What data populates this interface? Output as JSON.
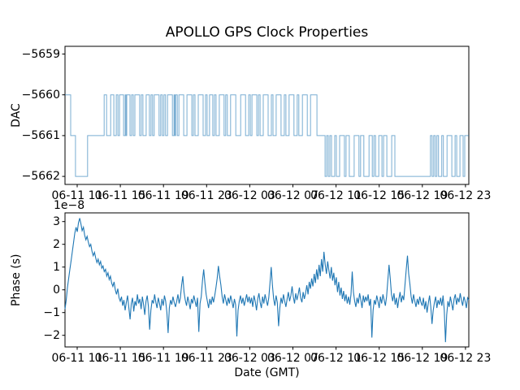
{
  "figure_title": "APOLLO GPS Clock Properties",
  "colors": {
    "line": "#1f77b4",
    "axis": "#000000",
    "background": "#ffffff",
    "text": "#000000"
  },
  "chart_data": [
    {
      "type": "line",
      "name": "dac-subplot",
      "ylabel": "DAC",
      "ytick_values": [
        -5659,
        -5660,
        -5661,
        -5662
      ],
      "ytick_labels": [
        "−5659",
        "−5660",
        "−5661",
        "−5662"
      ],
      "ylim": [
        -5662.25,
        -5658.8
      ],
      "xtick_labels": [
        "06-11 11",
        "06-11 15",
        "06-11 19",
        "06-11 23",
        "06-12 03",
        "06-12 07",
        "06-12 11",
        "06-12 15",
        "06-12 19",
        "06-12 23"
      ],
      "x_tick_interval_hours": 4,
      "line_style": "step",
      "start_value": -5660,
      "step_transitions": [
        [
          0.014,
          -5661
        ],
        [
          0.026,
          -5662
        ],
        [
          0.056,
          -5661
        ],
        [
          0.097,
          -5660
        ],
        [
          0.103,
          -5661
        ],
        [
          0.113,
          -5660
        ],
        [
          0.121,
          -5661
        ],
        [
          0.127,
          -5660
        ],
        [
          0.131,
          -5661
        ],
        [
          0.135,
          -5660
        ],
        [
          0.145,
          -5661
        ],
        [
          0.149,
          -5660
        ],
        [
          0.151,
          -5661
        ],
        [
          0.153,
          -5660
        ],
        [
          0.161,
          -5661
        ],
        [
          0.165,
          -5660
        ],
        [
          0.169,
          -5661
        ],
        [
          0.173,
          -5660
        ],
        [
          0.185,
          -5661
        ],
        [
          0.189,
          -5660
        ],
        [
          0.193,
          -5661
        ],
        [
          0.201,
          -5660
        ],
        [
          0.209,
          -5661
        ],
        [
          0.213,
          -5660
        ],
        [
          0.217,
          -5661
        ],
        [
          0.221,
          -5660
        ],
        [
          0.233,
          -5661
        ],
        [
          0.237,
          -5660
        ],
        [
          0.241,
          -5661
        ],
        [
          0.245,
          -5660
        ],
        [
          0.249,
          -5661
        ],
        [
          0.254,
          -5660
        ],
        [
          0.266,
          -5661
        ],
        [
          0.27,
          -5660
        ],
        [
          0.272,
          -5661
        ],
        [
          0.274,
          -5660
        ],
        [
          0.278,
          -5661
        ],
        [
          0.282,
          -5660
        ],
        [
          0.294,
          -5661
        ],
        [
          0.302,
          -5660
        ],
        [
          0.314,
          -5661
        ],
        [
          0.318,
          -5660
        ],
        [
          0.322,
          -5661
        ],
        [
          0.33,
          -5660
        ],
        [
          0.342,
          -5661
        ],
        [
          0.348,
          -5660
        ],
        [
          0.352,
          -5661
        ],
        [
          0.358,
          -5660
        ],
        [
          0.366,
          -5661
        ],
        [
          0.37,
          -5660
        ],
        [
          0.374,
          -5661
        ],
        [
          0.382,
          -5660
        ],
        [
          0.394,
          -5661
        ],
        [
          0.398,
          -5660
        ],
        [
          0.402,
          -5661
        ],
        [
          0.41,
          -5660
        ],
        [
          0.423,
          -5661
        ],
        [
          0.435,
          -5660
        ],
        [
          0.447,
          -5661
        ],
        [
          0.455,
          -5660
        ],
        [
          0.459,
          -5661
        ],
        [
          0.463,
          -5660
        ],
        [
          0.475,
          -5661
        ],
        [
          0.479,
          -5660
        ],
        [
          0.483,
          -5661
        ],
        [
          0.491,
          -5660
        ],
        [
          0.503,
          -5661
        ],
        [
          0.511,
          -5660
        ],
        [
          0.515,
          -5661
        ],
        [
          0.523,
          -5660
        ],
        [
          0.535,
          -5661
        ],
        [
          0.543,
          -5660
        ],
        [
          0.547,
          -5661
        ],
        [
          0.555,
          -5660
        ],
        [
          0.567,
          -5661
        ],
        [
          0.575,
          -5660
        ],
        [
          0.579,
          -5661
        ],
        [
          0.588,
          -5660
        ],
        [
          0.6,
          -5661
        ],
        [
          0.608,
          -5660
        ],
        [
          0.624,
          -5661
        ],
        [
          0.644,
          -5662
        ],
        [
          0.648,
          -5661
        ],
        [
          0.652,
          -5662
        ],
        [
          0.656,
          -5661
        ],
        [
          0.66,
          -5662
        ],
        [
          0.668,
          -5661
        ],
        [
          0.672,
          -5662
        ],
        [
          0.68,
          -5661
        ],
        [
          0.692,
          -5662
        ],
        [
          0.696,
          -5661
        ],
        [
          0.704,
          -5662
        ],
        [
          0.716,
          -5661
        ],
        [
          0.728,
          -5662
        ],
        [
          0.732,
          -5661
        ],
        [
          0.74,
          -5662
        ],
        [
          0.753,
          -5661
        ],
        [
          0.761,
          -5662
        ],
        [
          0.765,
          -5661
        ],
        [
          0.769,
          -5662
        ],
        [
          0.777,
          -5661
        ],
        [
          0.785,
          -5662
        ],
        [
          0.789,
          -5661
        ],
        [
          0.797,
          -5662
        ],
        [
          0.809,
          -5661
        ],
        [
          0.817,
          -5662
        ],
        [
          0.905,
          -5661
        ],
        [
          0.909,
          -5662
        ],
        [
          0.913,
          -5661
        ],
        [
          0.917,
          -5662
        ],
        [
          0.921,
          -5661
        ],
        [
          0.925,
          -5662
        ],
        [
          0.933,
          -5661
        ],
        [
          0.937,
          -5662
        ],
        [
          0.946,
          -5661
        ],
        [
          0.958,
          -5662
        ],
        [
          0.966,
          -5661
        ],
        [
          0.97,
          -5662
        ],
        [
          0.978,
          -5661
        ],
        [
          0.986,
          -5662
        ],
        [
          0.99,
          -5661
        ]
      ]
    },
    {
      "type": "line",
      "name": "phase-subplot",
      "ylabel": "Phase (s)",
      "xlabel": "Date (GMT)",
      "offset_text": "1e−8",
      "ytick_values": [
        3,
        2,
        1,
        0,
        -1,
        -2
      ],
      "ytick_labels": [
        "3",
        "2",
        "1",
        "0",
        "−1",
        "−2"
      ],
      "ylim": [
        -2.55,
        3.4
      ],
      "xtick_labels": [
        "06-11 11",
        "06-11 15",
        "06-11 19",
        "06-11 23",
        "06-12 03",
        "06-12 07",
        "06-12 11",
        "06-12 15",
        "06-12 19",
        "06-12 23"
      ],
      "x_tick_interval_hours": 4,
      "unit_scale": "1e-8",
      "values_1e8": [
        -0.85,
        -0.45,
        0.1,
        0.5,
        0.9,
        1.3,
        1.7,
        2.1,
        2.5,
        2.75,
        2.55,
        2.95,
        3.15,
        2.9,
        2.6,
        2.75,
        2.4,
        2.2,
        2.35,
        2.1,
        1.9,
        2.0,
        1.7,
        1.5,
        1.65,
        1.4,
        1.2,
        1.35,
        1.1,
        1.25,
        0.95,
        1.05,
        0.8,
        0.9,
        0.6,
        0.75,
        0.45,
        0.6,
        0.3,
        0.15,
        0.35,
        0.0,
        -0.2,
        0.05,
        -0.35,
        -0.5,
        -0.3,
        -0.7,
        -0.45,
        -0.9,
        -0.55,
        -0.25,
        -0.8,
        -1.3,
        -0.6,
        -0.35,
        -0.95,
        -0.5,
        -0.7,
        -0.2,
        -0.6,
        -0.4,
        -0.85,
        -0.3,
        -0.65,
        -1.1,
        -0.5,
        -0.25,
        -0.75,
        -1.75,
        -0.9,
        -0.45,
        -0.6,
        -0.2,
        -0.55,
        -0.8,
        -0.35,
        -0.6,
        -0.9,
        -0.4,
        -0.7,
        -0.25,
        -0.5,
        -1.0,
        -1.9,
        -0.8,
        -0.45,
        -0.65,
        -0.3,
        -0.55,
        -0.75,
        -0.5,
        -0.2,
        -0.6,
        -0.35,
        0.2,
        0.6,
        -0.1,
        -0.45,
        -0.7,
        -0.3,
        -0.55,
        -0.85,
        -0.4,
        -0.6,
        -0.25,
        -0.5,
        -0.75,
        -0.35,
        -1.85,
        -0.6,
        -0.3,
        0.4,
        0.9,
        0.3,
        -0.2,
        -0.5,
        -0.8,
        -0.4,
        -0.65,
        -0.3,
        -0.55,
        -0.25,
        0.1,
        0.5,
        1.05,
        0.6,
        0.2,
        -0.3,
        -0.6,
        -0.2,
        -0.45,
        -0.7,
        -0.35,
        -0.6,
        -0.25,
        -0.5,
        -0.8,
        -0.4,
        -0.65,
        -2.05,
        -0.9,
        -0.5,
        -0.25,
        -0.6,
        -0.35,
        -0.7,
        -0.45,
        -0.2,
        -0.55,
        -0.3,
        -0.6,
        -0.35,
        -0.75,
        -0.25,
        -0.5,
        -0.9,
        -0.4,
        -0.15,
        -0.55,
        -0.8,
        -0.3,
        -0.6,
        -0.2,
        -0.45,
        -0.7,
        -0.35,
        0.3,
        1.0,
        0.2,
        -0.4,
        -0.7,
        -0.25,
        -0.55,
        -1.6,
        -0.8,
        -0.35,
        -0.6,
        -0.2,
        -0.5,
        -0.75,
        -0.4,
        -0.1,
        -0.5,
        -0.25,
        0.15,
        -0.3,
        -0.6,
        -0.15,
        -0.45,
        -0.2,
        0.1,
        -0.35,
        -0.55,
        -0.1,
        -0.4,
        -0.15,
        0.2,
        -0.2,
        0.35,
        0.05,
        0.5,
        0.15,
        0.7,
        0.3,
        0.9,
        0.45,
        1.1,
        0.6,
        1.35,
        0.8,
        1.67,
        1.1,
        0.7,
        1.25,
        0.85,
        0.5,
        1.0,
        0.4,
        0.75,
        0.2,
        0.55,
        -0.1,
        0.35,
        -0.25,
        0.1,
        -0.4,
        -0.05,
        -0.5,
        -0.2,
        -0.6,
        -0.3,
        -0.65,
        -0.2,
        0.8,
        -0.1,
        -0.5,
        -0.75,
        -0.35,
        -0.6,
        -0.15,
        -0.45,
        -0.8,
        -0.25,
        -0.55,
        -0.3,
        -0.5,
        -0.2,
        -0.7,
        -0.4,
        -2.1,
        -0.9,
        -0.45,
        -0.65,
        -0.25,
        -0.5,
        -0.8,
        -0.3,
        -0.6,
        -0.2,
        -0.45,
        -0.7,
        -0.3,
        0.4,
        1.1,
        0.5,
        -0.2,
        -0.5,
        -0.15,
        -0.65,
        -0.35,
        -0.8,
        -0.4,
        -0.1,
        -0.55,
        -0.25,
        -0.45,
        0.2,
        0.9,
        1.5,
        0.7,
        0.25,
        -0.3,
        -0.6,
        -0.2,
        -0.5,
        -0.75,
        -0.4,
        -0.65,
        -0.3,
        -0.55,
        -0.7,
        -0.35,
        -0.85,
        -0.5,
        -1.0,
        -0.6,
        -0.25,
        -0.75,
        -1.5,
        -0.9,
        -0.55,
        -0.3,
        -0.8,
        -0.45,
        -0.65,
        -0.35,
        -0.7,
        -0.25,
        -0.9,
        -2.3,
        -1.1,
        -0.5,
        -0.75,
        -0.3,
        -0.6,
        -0.9,
        -0.4,
        -0.2,
        -0.65,
        -0.35,
        -0.55,
        -0.15,
        -0.45,
        -0.7,
        -0.3,
        -0.5,
        -0.8,
        -0.35,
        -0.45
      ]
    }
  ]
}
